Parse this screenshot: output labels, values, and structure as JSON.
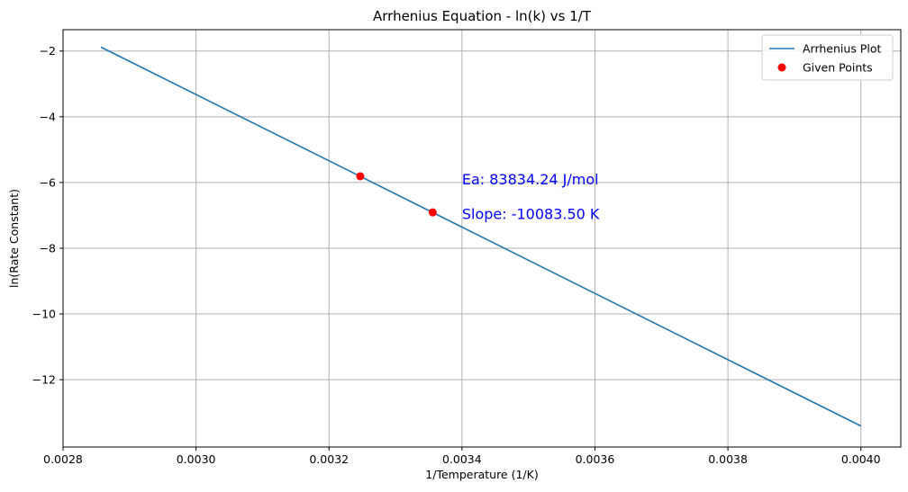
{
  "chart_data": {
    "type": "line",
    "title": "Arrhenius Equation - ln(k) vs 1/T",
    "xlabel": "1/Temperature (1/K)",
    "ylabel": "ln(Rate Constant)",
    "xlim": [
      0.0028,
      0.00406
    ],
    "ylim": [
      -14.05,
      -1.35
    ],
    "xticks": [
      0.0028,
      0.003,
      0.0032,
      0.0034,
      0.0036,
      0.0038,
      0.004
    ],
    "xtick_labels": [
      "0.0028",
      "0.0030",
      "0.0032",
      "0.0034",
      "0.0036",
      "0.0038",
      "0.0040"
    ],
    "yticks": [
      -2,
      -4,
      -6,
      -8,
      -10,
      -12
    ],
    "ytick_labels": [
      "−2",
      "−4",
      "−6",
      "−8",
      "−10",
      "−12"
    ],
    "grid": true,
    "legend_position": "top-right",
    "series": [
      {
        "name": "Arrhenius Plot",
        "kind": "line",
        "color": "#1f77b4",
        "x": [
          0.002857,
          0.004
        ],
        "y": [
          -1.88,
          -13.41
        ]
      },
      {
        "name": "Given Points",
        "kind": "scatter",
        "color": "#ff0000",
        "x": [
          0.003247,
          0.003356
        ],
        "y": [
          -5.81,
          -6.91
        ]
      }
    ],
    "annotations": [
      {
        "text": "Ea: 83834.24 J/mol",
        "x": 0.0034,
        "y": -5.9,
        "color": "#0000ff"
      },
      {
        "text": "Slope: -10083.50 K",
        "x": 0.0034,
        "y": -6.95,
        "color": "#0000ff"
      }
    ]
  }
}
